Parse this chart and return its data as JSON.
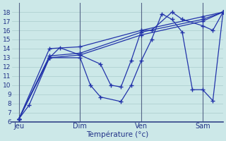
{
  "xlabel": "Température (°c)",
  "background_color": "#cce8e8",
  "grid_color": "#aacccc",
  "line_color": "#2233aa",
  "vline_color": "#556688",
  "bottom_line_color": "#334488",
  "xtick_labels": [
    "Jeu",
    "Dim",
    "Ven",
    "Sam"
  ],
  "xtick_positions": [
    0,
    36,
    72,
    108
  ],
  "xlim": [
    -4,
    120
  ],
  "ylim": [
    6,
    19
  ],
  "yticks": [
    6,
    7,
    8,
    9,
    10,
    11,
    12,
    13,
    14,
    15,
    16,
    17,
    18
  ],
  "vlines": [
    0,
    36,
    72,
    108
  ],
  "series": [
    {
      "x": [
        0,
        6,
        18,
        36,
        42,
        48,
        60,
        66,
        72,
        78,
        84,
        90,
        96,
        102,
        108,
        114,
        120
      ],
      "y": [
        6.3,
        7.8,
        13.0,
        13.0,
        10.0,
        8.7,
        8.2,
        10.0,
        12.7,
        15.0,
        17.8,
        17.2,
        15.8,
        9.5,
        9.5,
        8.3,
        18.0
      ]
    },
    {
      "x": [
        0,
        18,
        36,
        72,
        108,
        120
      ],
      "y": [
        6.3,
        13.0,
        13.3,
        15.5,
        17.0,
        18.0
      ]
    },
    {
      "x": [
        0,
        18,
        36,
        72,
        108,
        120
      ],
      "y": [
        6.3,
        13.2,
        13.5,
        15.8,
        17.2,
        18.0
      ]
    },
    {
      "x": [
        0,
        18,
        36,
        72,
        108,
        120
      ],
      "y": [
        6.3,
        14.0,
        14.2,
        16.0,
        17.5,
        18.0
      ]
    },
    {
      "x": [
        0,
        18,
        24,
        36,
        48,
        54,
        60,
        66,
        72,
        78,
        90,
        96,
        108,
        114,
        120
      ],
      "y": [
        6.3,
        13.0,
        14.1,
        13.3,
        12.3,
        10.0,
        9.8,
        12.7,
        16.0,
        16.0,
        18.0,
        17.2,
        16.5,
        16.0,
        18.0
      ]
    }
  ]
}
